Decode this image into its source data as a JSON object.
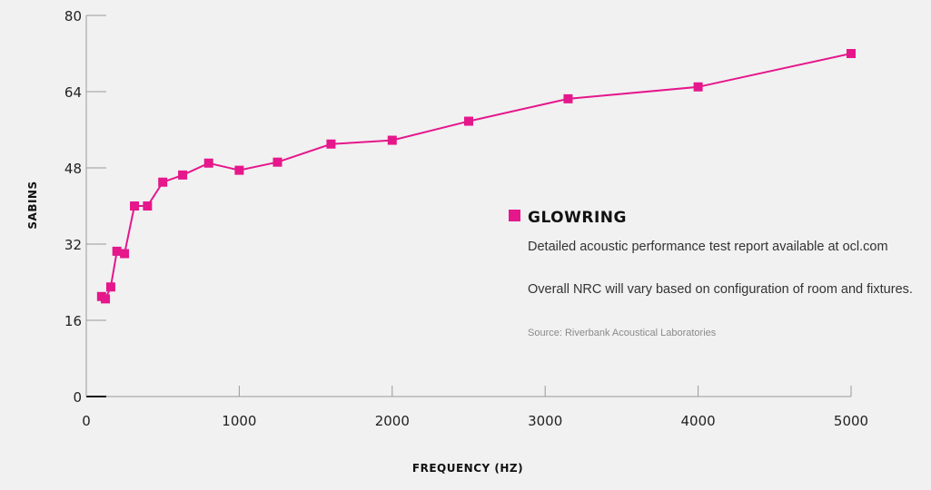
{
  "chart_data": {
    "type": "line",
    "xlabel": "FREQUENCY (HZ)",
    "ylabel": "SABINS",
    "xlim": [
      0,
      5000
    ],
    "ylim": [
      0,
      80
    ],
    "xticks": [
      0,
      1000,
      2000,
      3000,
      4000,
      5000
    ],
    "yticks": [
      0,
      16,
      32,
      48,
      64,
      80
    ],
    "grid": false,
    "legend_position": "right",
    "series": [
      {
        "name": "GLOWRING",
        "color": "#e5178b",
        "x": [
          100,
          125,
          160,
          200,
          250,
          315,
          400,
          500,
          630,
          800,
          1000,
          1250,
          1600,
          2000,
          2500,
          3150,
          4000,
          5000
        ],
        "y": [
          21,
          20.5,
          23,
          30.5,
          30,
          40,
          40,
          45,
          46.5,
          49,
          47.5,
          49.2,
          53,
          53.8,
          57.8,
          62.5,
          65,
          72
        ]
      }
    ],
    "annotations": [
      "Detailed acoustic performance test report available at ocl.com",
      "Overall NRC will vary based on configuration of room and fixtures.",
      "Source: Riverbank Acoustical Laboratories"
    ]
  }
}
